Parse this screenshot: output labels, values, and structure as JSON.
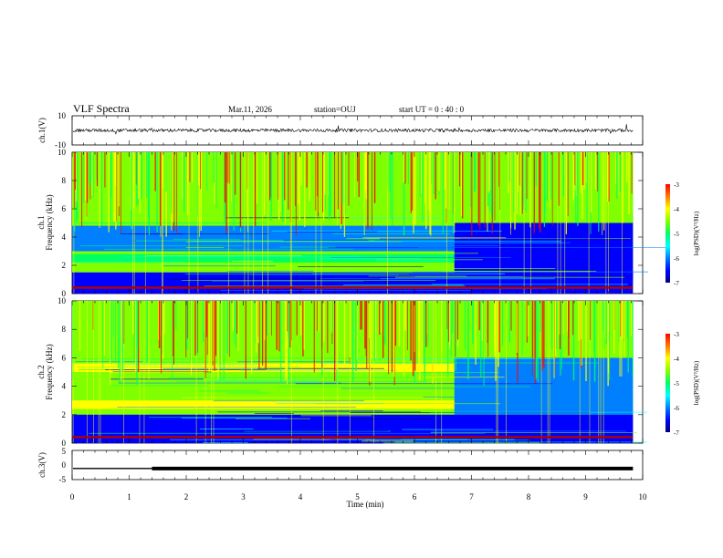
{
  "header": {
    "title": "VLF Spectra",
    "date": "Mar.11, 2026",
    "station": "station=OUJ",
    "start": "start  UT =   0 : 40 : 0"
  },
  "chart_data": [
    {
      "type": "line",
      "panel": "ch1-waveform",
      "title": "",
      "xlabel": "Time (min)",
      "ylabel": "ch.1(V)",
      "xlim": [
        0,
        10
      ],
      "ylim": [
        -10,
        10
      ],
      "yticks": [
        "10",
        "-10"
      ],
      "series_description": "noisy waveform centered near 0 V, amplitude about ±1 V with occasional spikes, data from 0 to 9.83 min",
      "x_end": 9.83
    },
    {
      "type": "heatmap",
      "panel": "ch1-spectrogram",
      "xlabel": "Time (min)",
      "ylabel": "ch.1 Frequency (kHz)",
      "xlim": [
        0,
        10
      ],
      "ylim": [
        0,
        10
      ],
      "yticks": [
        "0",
        "2",
        "4",
        "6",
        "8",
        "10"
      ],
      "colorbar": {
        "label": "log(PSD)(V²/Hz)",
        "range": [
          -7,
          -3
        ],
        "ticks": [
          "-3",
          "-4",
          "-5",
          "-6",
          "-7"
        ]
      },
      "features": [
        {
          "time_min": [
            0,
            9.83
          ],
          "freq_khz": [
            0,
            1.5
          ],
          "level": -6.5,
          "note": "low-frequency dark-blue band"
        },
        {
          "time_min": [
            0,
            6.7
          ],
          "freq_khz": [
            2.2,
            2.8
          ],
          "level": -4.8,
          "note": "cyan/green band"
        },
        {
          "time_min": [
            0,
            6.7
          ],
          "freq_khz": [
            3.0,
            4.8
          ],
          "level": -6.0,
          "note": "blue band"
        },
        {
          "time_min": [
            6.7,
            9.83
          ],
          "freq_khz": [
            1.0,
            5.5
          ],
          "level": -6.3,
          "note": "blue region after 6.7 min"
        },
        {
          "time_min": [
            0,
            9.83
          ],
          "freq_khz": [
            5,
            10
          ],
          "level": -4.6,
          "note": "green/yellow sferics with red streaks"
        }
      ]
    },
    {
      "type": "heatmap",
      "panel": "ch2-spectrogram",
      "xlabel": "Time (min)",
      "ylabel": "ch.2 Frequency (kHz)",
      "xlim": [
        0,
        10
      ],
      "ylim": [
        0,
        10
      ],
      "yticks": [
        "0",
        "2",
        "4",
        "6",
        "8",
        "10"
      ],
      "colorbar": {
        "label": "log(PSD)(V²/Hz)",
        "range": [
          -7,
          -3
        ],
        "ticks": [
          "-3",
          "-4",
          "-5",
          "-6",
          "-7"
        ]
      },
      "features": [
        {
          "time_min": [
            0,
            6.7
          ],
          "freq_khz": [
            5.0,
            5.6
          ],
          "level": -3.8,
          "note": "orange/yellow band"
        },
        {
          "time_min": [
            0,
            6.7
          ],
          "freq_khz": [
            2.4,
            3.0
          ],
          "level": -4.0,
          "note": "yellow band"
        },
        {
          "time_min": [
            6.7,
            9.83
          ],
          "freq_khz": [
            2.0,
            6.0
          ],
          "level": -6.2,
          "note": "blue region after 6.7 min"
        },
        {
          "time_min": [
            0,
            9.83
          ],
          "freq_khz": [
            0,
            2.0
          ],
          "level": -6.4,
          "note": "low-frequency blue band"
        },
        {
          "time_min": [
            0,
            9.83
          ],
          "freq_khz": [
            6,
            10
          ],
          "level": -4.6,
          "note": "green/yellow sferics"
        }
      ]
    },
    {
      "type": "line",
      "panel": "ch3-signal",
      "xlabel": "Time (min)",
      "ylabel": "ch.3(V)",
      "xlim": [
        0,
        10
      ],
      "ylim": [
        -5,
        5
      ],
      "yticks": [
        "5",
        "0",
        "-5"
      ],
      "series_description": "flat trace near -1.2 V; thickens after ~1.4 min",
      "value_v": -1.2,
      "thick_from_min": 1.4
    }
  ],
  "xaxis": {
    "ticks": [
      "0",
      "1",
      "2",
      "3",
      "4",
      "5",
      "6",
      "7",
      "8",
      "9",
      "10"
    ],
    "label": "Time (min)"
  },
  "colors": {
    "scale": [
      "#00007a",
      "#0000ff",
      "#0080ff",
      "#00ffff",
      "#00ff60",
      "#80ff00",
      "#ffff00",
      "#ff8000",
      "#ff0000"
    ]
  }
}
